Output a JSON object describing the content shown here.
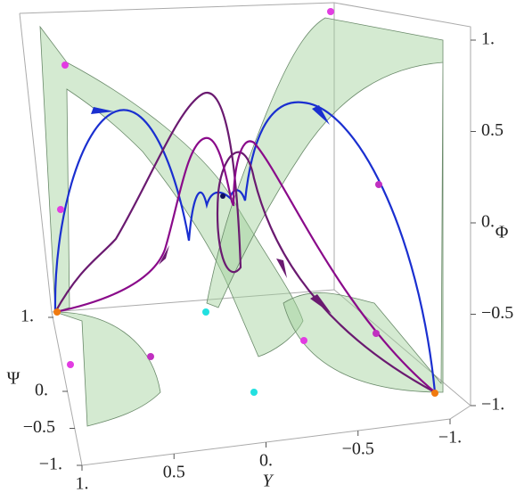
{
  "chart_data": {
    "type": "phase-portrait-3d",
    "xlabel": "Y",
    "xlim": [
      1,
      -1
    ],
    "xticks": [
      {
        "value": 1,
        "label": "1."
      },
      0.5,
      {
        "value": 0,
        "label": "0."
      },
      {
        "value": -0.5,
        "label": "−0.5"
      },
      {
        "value": -1,
        "label": "−1."
      }
    ],
    "ylabel": "Ψ",
    "ylim": [
      -1,
      1
    ],
    "yticks": [
      {
        "value": 1,
        "label": "1."
      },
      {
        "value": 0,
        "label": "0."
      },
      {
        "value": -0.5,
        "label": "−0.5"
      },
      {
        "value": -1,
        "label": "−1."
      }
    ],
    "zlabel": "Φ",
    "zlim": [
      -1,
      1
    ],
    "zticks": [
      {
        "value": 1,
        "label": "1."
      },
      0.5,
      {
        "value": 0,
        "label": "0."
      },
      {
        "value": -0.5,
        "label": "−0.5"
      },
      {
        "value": -1,
        "label": "−1."
      }
    ]
  }
}
